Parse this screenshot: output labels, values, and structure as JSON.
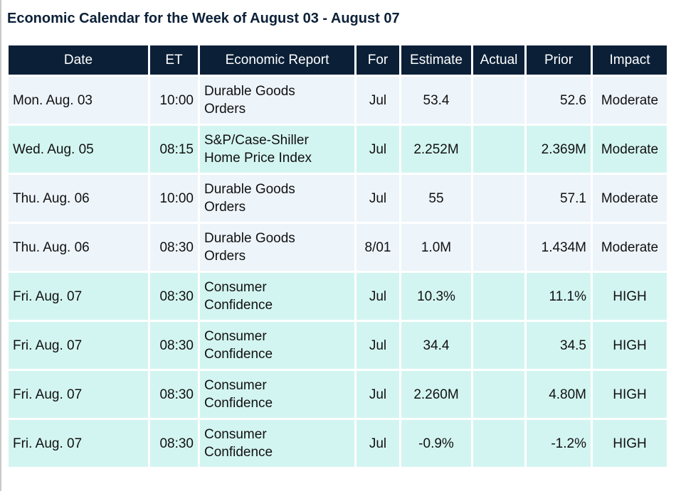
{
  "title": "Economic Calendar for the Week of August 03 - August 07",
  "colors": {
    "header_bg": "#0b2037",
    "header_text": "#ffffff",
    "title_text": "#0c2038",
    "row_light": "#edf4fa",
    "row_teal": "#d3f5f1"
  },
  "table": {
    "headers": [
      "Date",
      "ET",
      "Economic Report",
      "For",
      "Estimate",
      "Actual",
      "Prior",
      "Impact"
    ],
    "rows": [
      {
        "date": "Mon. Aug. 03",
        "et": "10:00",
        "report_line1": "Durable Goods",
        "report_line2": "Orders",
        "for": "Jul",
        "estimate": "53.4",
        "actual": "",
        "prior": "52.6",
        "impact": "Moderate"
      },
      {
        "date": "Wed. Aug. 05",
        "et": "08:15",
        "report_line1": "S&P/Case-Shiller",
        "report_line2": "Home Price Index",
        "for": "Jul",
        "estimate": "2.252M",
        "actual": "",
        "prior": "2.369M",
        "impact": "Moderate"
      },
      {
        "date": "Thu. Aug. 06",
        "et": "10:00",
        "report_line1": "Durable Goods",
        "report_line2": "Orders",
        "for": "Jul",
        "estimate": "55",
        "actual": "",
        "prior": "57.1",
        "impact": "Moderate"
      },
      {
        "date": "Thu. Aug. 06",
        "et": "08:30",
        "report_line1": "Durable Goods",
        "report_line2": "Orders",
        "for": "8/01",
        "estimate": "1.0M",
        "actual": "",
        "prior": "1.434M",
        "impact": "Moderate"
      },
      {
        "date": "Fri. Aug. 07",
        "et": "08:30",
        "report_line1": "Consumer",
        "report_line2": "Confidence",
        "for": "Jul",
        "estimate": "10.3%",
        "actual": "",
        "prior": "11.1%",
        "impact": "HIGH"
      },
      {
        "date": "Fri. Aug. 07",
        "et": "08:30",
        "report_line1": "Consumer",
        "report_line2": "Confidence",
        "for": "Jul",
        "estimate": "34.4",
        "actual": "",
        "prior": "34.5",
        "impact": "HIGH"
      },
      {
        "date": "Fri. Aug. 07",
        "et": "08:30",
        "report_line1": "Consumer",
        "report_line2": "Confidence",
        "for": "Jul",
        "estimate": "2.260M",
        "actual": "",
        "prior": "4.80M",
        "impact": "HIGH"
      },
      {
        "date": "Fri. Aug. 07",
        "et": "08:30",
        "report_line1": "Consumer",
        "report_line2": "Confidence",
        "for": "Jul",
        "estimate": "-0.9%",
        "actual": "",
        "prior": "-1.2%",
        "impact": "HIGH"
      }
    ]
  }
}
